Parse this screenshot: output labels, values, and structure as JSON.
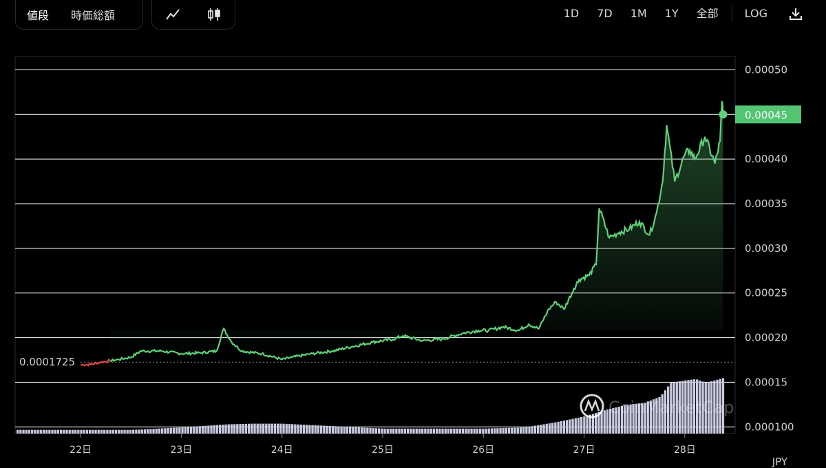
{
  "toolbar": {
    "type_options": [
      "値段",
      "時価総額"
    ],
    "active_type": "値段",
    "style_icons": [
      "line-chart-icon",
      "candlestick-icon"
    ],
    "ranges": [
      "1D",
      "7D",
      "1M",
      "1Y",
      "全部"
    ],
    "log_label": "LOG",
    "download_icon": "download-icon"
  },
  "colors": {
    "price_up": "#5fd17a",
    "price_down": "#e04848",
    "volume": "#c9cbe0",
    "grid": "#ffffff",
    "label_bg": "#52c472"
  },
  "chart_data": {
    "type": "line",
    "currency": "JPY",
    "x_ticks": [
      "22日",
      "23日",
      "24日",
      "25日",
      "26日",
      "27日",
      "28日"
    ],
    "y_ticks": [
      "0.000100",
      "0.00015",
      "0.00020",
      "0.00025",
      "0.00030",
      "0.00035",
      "0.00040",
      "0.00045",
      "0.00050"
    ],
    "ylim": [
      9.25e-05,
      0.000515
    ],
    "open_price": 0.0001725,
    "open_price_label": "0.0001725",
    "current_price": 0.00045,
    "current_price_label": "0.00045",
    "grid": true,
    "watermark": "CoinMarketCap",
    "price": {
      "x": [
        22.0,
        22.1,
        22.2,
        22.35,
        22.5,
        22.6,
        22.8,
        23.0,
        23.2,
        23.35,
        23.42,
        23.5,
        23.6,
        23.8,
        24.0,
        24.1,
        24.3,
        24.5,
        24.7,
        24.9,
        25.1,
        25.2,
        25.4,
        25.6,
        25.8,
        25.95,
        26.05,
        26.2,
        26.35,
        26.45,
        26.55,
        26.65,
        26.72,
        26.8,
        26.9,
        26.95,
        27.05,
        27.12,
        27.15,
        27.25,
        27.35,
        27.45,
        27.55,
        27.65,
        27.72,
        27.78,
        27.82,
        27.9,
        28.0,
        28.05,
        28.1,
        28.2,
        28.3,
        28.35,
        28.37,
        28.38
      ],
      "y": [
        0.0001695,
        0.00017,
        0.0001725,
        0.000175,
        0.000178,
        0.000185,
        0.000185,
        0.000182,
        0.000183,
        0.000185,
        0.00021,
        0.000195,
        0.000185,
        0.000182,
        0.0001755,
        0.000178,
        0.000182,
        0.000185,
        0.00019,
        0.000195,
        0.000198,
        0.000202,
        0.0001965,
        0.0001985,
        0.000205,
        0.000208,
        0.000208,
        0.000212,
        0.000208,
        0.000215,
        0.00021,
        0.000232,
        0.00024,
        0.000232,
        0.000255,
        0.000265,
        0.00027,
        0.000282,
        0.000345,
        0.000312,
        0.000318,
        0.000322,
        0.00033,
        0.000315,
        0.00034,
        0.000375,
        0.000438,
        0.000375,
        0.000405,
        0.00041,
        0.0004,
        0.000425,
        0.000395,
        0.00042,
        0.000465,
        0.00045
      ]
    },
    "volume": {
      "x": [
        22.0,
        22.5,
        23.0,
        23.45,
        23.7,
        24.0,
        24.5,
        25.0,
        25.5,
        26.0,
        26.4,
        26.7,
        27.0,
        27.2,
        27.4,
        27.6,
        27.75,
        27.85,
        28.0,
        28.1,
        28.2,
        28.38
      ],
      "h": [
        0.06,
        0.06,
        0.1,
        0.15,
        0.16,
        0.16,
        0.12,
        0.08,
        0.08,
        0.08,
        0.1,
        0.18,
        0.28,
        0.38,
        0.46,
        0.5,
        0.6,
        0.82,
        0.86,
        0.88,
        0.82,
        0.9
      ]
    }
  }
}
